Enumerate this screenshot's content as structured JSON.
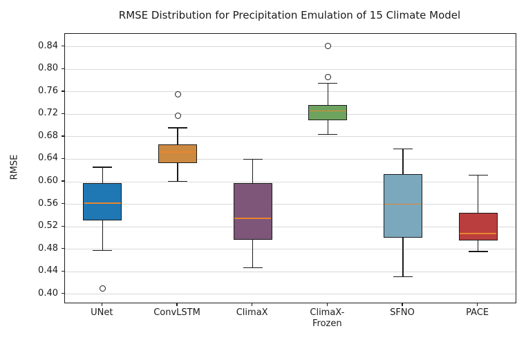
{
  "chart_data": {
    "type": "box",
    "title": "RMSE Distribution for Precipitation Emulation of 15 Climate Model",
    "ylabel": "RMSE",
    "categories": [
      "UNet",
      "ConvLSTM",
      "ClimaX",
      "ClimaX-\nFrozen",
      "SFNO",
      "PACE"
    ],
    "ylim": [
      0.385,
      0.863
    ],
    "yticks": [
      0.4,
      0.44,
      0.48,
      0.52,
      0.56,
      0.6,
      0.64,
      0.68,
      0.72,
      0.76,
      0.8,
      0.84
    ],
    "grid": "horizontal",
    "grid_color": "#d9d9d9",
    "median_color": "#e8862e",
    "box_edge_color": "#1a1a1a",
    "flier_style": "open-circle",
    "boxes": [
      {
        "label": "UNet",
        "color": "#1f77b4",
        "whislo": 0.478,
        "q1": 0.531,
        "med": 0.562,
        "q3": 0.597,
        "whishi": 0.626,
        "fliers": [
          0.41
        ]
      },
      {
        "label": "ConvLSTM",
        "color": "#cc8a41",
        "whislo": 0.601,
        "q1": 0.633,
        "med": 0.653,
        "q3": 0.666,
        "whishi": 0.696,
        "fliers": [
          0.718,
          0.756
        ]
      },
      {
        "label": "ClimaX",
        "color": "#7e567a",
        "whislo": 0.447,
        "q1": 0.497,
        "med": 0.535,
        "q3": 0.597,
        "whishi": 0.64,
        "fliers": []
      },
      {
        "label": "ClimaX-Frozen",
        "color": "#6ea35f",
        "whislo": 0.684,
        "q1": 0.709,
        "med": 0.726,
        "q3": 0.737,
        "whishi": 0.775,
        "fliers": [
          0.786,
          0.842
        ]
      },
      {
        "label": "SFNO",
        "color": "#7ba8bd",
        "whislo": 0.431,
        "q1": 0.501,
        "med": 0.56,
        "q3": 0.613,
        "whishi": 0.658,
        "fliers": []
      },
      {
        "label": "PACE",
        "color": "#bb3e3e",
        "whislo": 0.476,
        "q1": 0.495,
        "med": 0.508,
        "q3": 0.545,
        "whishi": 0.612,
        "fliers": []
      }
    ]
  }
}
